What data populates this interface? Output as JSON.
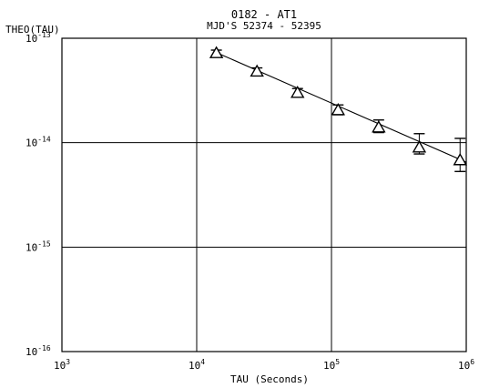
{
  "chart_data": {
    "type": "scatter",
    "title": "0182 - AT1",
    "subtitle": "MJD'S 52374 - 52395",
    "ylabel": "THEO(TAU)",
    "xlabel": "TAU (Seconds)",
    "x_scale": "log",
    "y_scale": "log",
    "xlim": [
      1000,
      1000000
    ],
    "ylim": [
      1e-16,
      1e-13
    ],
    "x_ticks": [
      {
        "value": 1000,
        "base": "10",
        "exp": "3"
      },
      {
        "value": 10000,
        "base": "10",
        "exp": "4"
      },
      {
        "value": 100000,
        "base": "10",
        "exp": "5"
      },
      {
        "value": 1000000,
        "base": "10",
        "exp": "6"
      }
    ],
    "y_ticks": [
      {
        "value": 1e-13,
        "base": "10",
        "exp": "-13"
      },
      {
        "value": 1e-14,
        "base": "10",
        "exp": "-14"
      },
      {
        "value": 1e-15,
        "base": "10",
        "exp": "-15"
      },
      {
        "value": 1e-16,
        "base": "10",
        "exp": "-16"
      }
    ],
    "grid": true,
    "marker": "triangle",
    "series": [
      {
        "points": [
          {
            "x": 14000,
            "y": 7.2e-14,
            "lo": 6.7e-14,
            "hi": 7.7e-14
          },
          {
            "x": 28000,
            "y": 4.8e-14,
            "lo": 4.4e-14,
            "hi": 5.2e-14
          },
          {
            "x": 56000,
            "y": 3e-14,
            "lo": 2.75e-14,
            "hi": 3.3e-14
          },
          {
            "x": 112000,
            "y": 2.05e-14,
            "lo": 1.85e-14,
            "hi": 2.3e-14
          },
          {
            "x": 224000,
            "y": 1.4e-14,
            "lo": 1.25e-14,
            "hi": 1.65e-14
          },
          {
            "x": 448000,
            "y": 9e-15,
            "lo": 7.8e-15,
            "hi": 1.22e-14
          },
          {
            "x": 900000,
            "y": 6.8e-15,
            "lo": 5.3e-15,
            "hi": 1.1e-14
          }
        ],
        "fit": [
          [
            14000,
            7.3e-14
          ],
          [
            1000000,
            6.5e-15
          ]
        ]
      }
    ]
  }
}
